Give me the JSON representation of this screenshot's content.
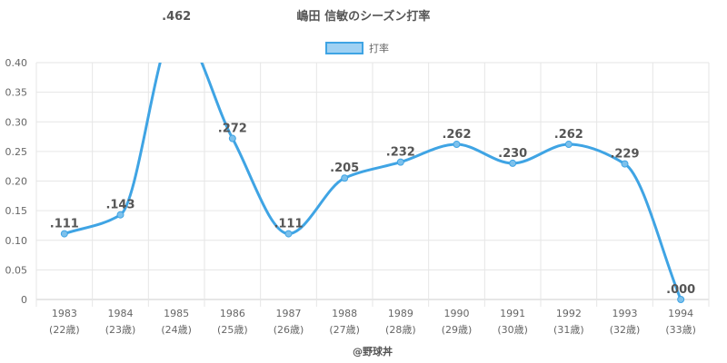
{
  "chart_data": {
    "type": "line",
    "title": "嶋田 信敏のシーズン打率",
    "legend": {
      "position": "top",
      "entries": [
        "打率"
      ]
    },
    "series": [
      {
        "name": "打率",
        "color": "#3fa4e4",
        "values": [
          0.111,
          0.143,
          0.462,
          0.272,
          0.111,
          0.205,
          0.232,
          0.262,
          0.23,
          0.262,
          0.229,
          0.0
        ],
        "labels": [
          ".111",
          ".143",
          ".462",
          ".272",
          ".111",
          ".205",
          ".232",
          ".262",
          ".230",
          ".262",
          ".229",
          ".000"
        ]
      }
    ],
    "categories": [
      "1983",
      "1984",
      "1985",
      "1986",
      "1987",
      "1988",
      "1989",
      "1990",
      "1991",
      "1992",
      "1993",
      "1994"
    ],
    "category_sublabels": [
      "(22歳)",
      "(23歳)",
      "(24歳)",
      "(25歳)",
      "(26歳)",
      "(27歳)",
      "(28歳)",
      "(29歳)",
      "(30歳)",
      "(31歳)",
      "(32歳)",
      "(33歳)"
    ],
    "ylim": [
      0,
      0.4
    ],
    "yticks": [
      0,
      0.05,
      0.1,
      0.15,
      0.2,
      0.25,
      0.3,
      0.35,
      0.4
    ],
    "ytick_labels": [
      "0",
      "0.05",
      "0.10",
      "0.15",
      "0.20",
      "0.25",
      "0.30",
      "0.35",
      "0.40"
    ],
    "grid": true,
    "credit": "@野球丼"
  }
}
